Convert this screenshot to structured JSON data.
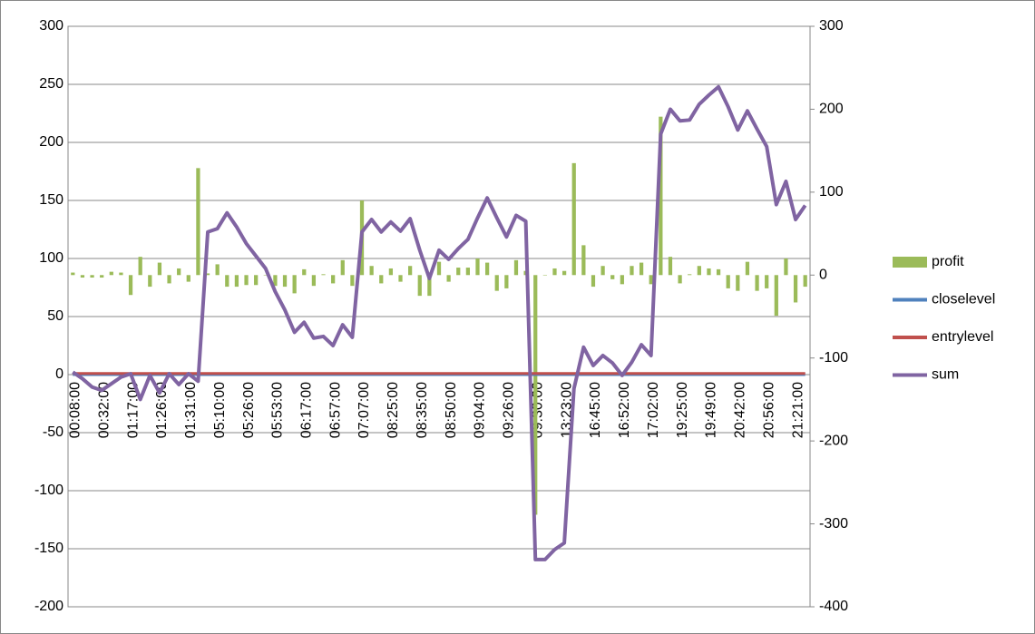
{
  "chart_data": {
    "type": "combo",
    "categories": [
      "00:08:00",
      null,
      null,
      "00:32:00",
      null,
      null,
      "01:17:00",
      null,
      null,
      "01:26:00",
      null,
      null,
      "01:31:00",
      null,
      null,
      "05:10:00",
      null,
      null,
      "05:26:00",
      null,
      null,
      "05:53:00",
      null,
      null,
      "06:17:00",
      null,
      null,
      "06:57:00",
      null,
      null,
      "07:07:00",
      null,
      null,
      "08:25:00",
      null,
      null,
      "08:35:00",
      null,
      null,
      "08:50:00",
      null,
      null,
      "09:04:00",
      null,
      null,
      "09:26:00",
      null,
      null,
      "09:30:00",
      null,
      null,
      "13:23:00",
      null,
      null,
      "16:45:00",
      null,
      null,
      "16:52:00",
      null,
      null,
      "17:02:00",
      null,
      null,
      "19:25:00",
      null,
      null,
      "19:49:00",
      null,
      null,
      "20:42:00",
      null,
      null,
      "20:56:00",
      null,
      null,
      "21:21:00",
      null
    ],
    "series": [
      {
        "name": "profit",
        "kind": "bar",
        "axis": "y2",
        "color": "#9bbb59",
        "values": [
          3,
          -3,
          -3,
          -3,
          4,
          3,
          -24,
          22,
          -14,
          15,
          -10,
          8,
          -8,
          129,
          2,
          13,
          -14,
          -14,
          -12,
          -12,
          0,
          -13,
          -14,
          -22,
          7,
          -13,
          1,
          -10,
          18,
          -13,
          90,
          11,
          -10,
          8,
          -8,
          11,
          -25,
          -25,
          16,
          -8,
          9,
          9,
          20,
          15,
          -19,
          -16,
          18,
          5,
          -289,
          0,
          8,
          5,
          135,
          36,
          -14,
          11,
          -5,
          -11,
          11,
          15,
          -11,
          191,
          22,
          -10,
          1,
          11,
          8,
          7,
          -16,
          -19,
          16,
          -19,
          -16,
          -49,
          20,
          -33,
          -14
        ]
      },
      {
        "name": "closelevel",
        "kind": "line",
        "color": "#4f81bd",
        "values": [
          0,
          0,
          0,
          0,
          0,
          0,
          0,
          0,
          0,
          0,
          0,
          0,
          0,
          0,
          0,
          0,
          0,
          0,
          0,
          0,
          0,
          0,
          0,
          0,
          0,
          0,
          0,
          0,
          0,
          0,
          0,
          0,
          0,
          0,
          0,
          0,
          0,
          0,
          0,
          0,
          0,
          0,
          0,
          0,
          0,
          0,
          0,
          0,
          0,
          0,
          0,
          0,
          0,
          0,
          0,
          0,
          0,
          0,
          0,
          0,
          0,
          0,
          0,
          0,
          0,
          0,
          0,
          0,
          0,
          0,
          0,
          0,
          0,
          0,
          0,
          0,
          0
        ]
      },
      {
        "name": "entrylevel",
        "kind": "line",
        "color": "#c0504d",
        "values": [
          1,
          1,
          1,
          1,
          1,
          1,
          1,
          1,
          1,
          1,
          1,
          1,
          1,
          1,
          1,
          1,
          1,
          1,
          1,
          1,
          1,
          1,
          1,
          1,
          1,
          1,
          1,
          1,
          1,
          1,
          1,
          1,
          1,
          1,
          1,
          1,
          1,
          1,
          1,
          1,
          1,
          1,
          1,
          1,
          1,
          1,
          1,
          1,
          1,
          1,
          1,
          1,
          1,
          1,
          1,
          1,
          1,
          1,
          1,
          1,
          1,
          1,
          1,
          1,
          1,
          1,
          1,
          1,
          1,
          1,
          1,
          1,
          1,
          1,
          1,
          1,
          1
        ]
      },
      {
        "name": "sum",
        "kind": "line",
        "axis": "y2",
        "color": "#8064a2",
        "values": [
          -117,
          -125,
          -135,
          -139,
          -131,
          -123,
          -119,
          -150,
          -121,
          -142,
          -119,
          -132,
          -119,
          -128,
          52,
          56,
          75,
          58,
          38,
          23,
          8,
          -20,
          -42,
          -69,
          -57,
          -76,
          -74,
          -85,
          -60,
          -75,
          52,
          67,
          52,
          64,
          53,
          68,
          30,
          -4,
          30,
          19,
          32,
          43,
          69,
          93,
          69,
          46,
          72,
          65,
          -343,
          -343,
          -331,
          -323,
          -137,
          -87,
          -109,
          -97,
          -106,
          -121,
          -105,
          -84,
          -97,
          170,
          200,
          186,
          187,
          206,
          217,
          227,
          203,
          175,
          198,
          176,
          155,
          85,
          113,
          67,
          84
        ]
      }
    ],
    "ylim": [
      -200,
      300
    ],
    "yticks": [
      -200,
      -150,
      -100,
      -50,
      0,
      50,
      100,
      150,
      200,
      250,
      300
    ],
    "y2lim": [
      -400,
      300
    ],
    "y2ticks": [
      -400,
      -300,
      -200,
      -100,
      0,
      100,
      200,
      300
    ],
    "grid": true,
    "legend": "right"
  }
}
